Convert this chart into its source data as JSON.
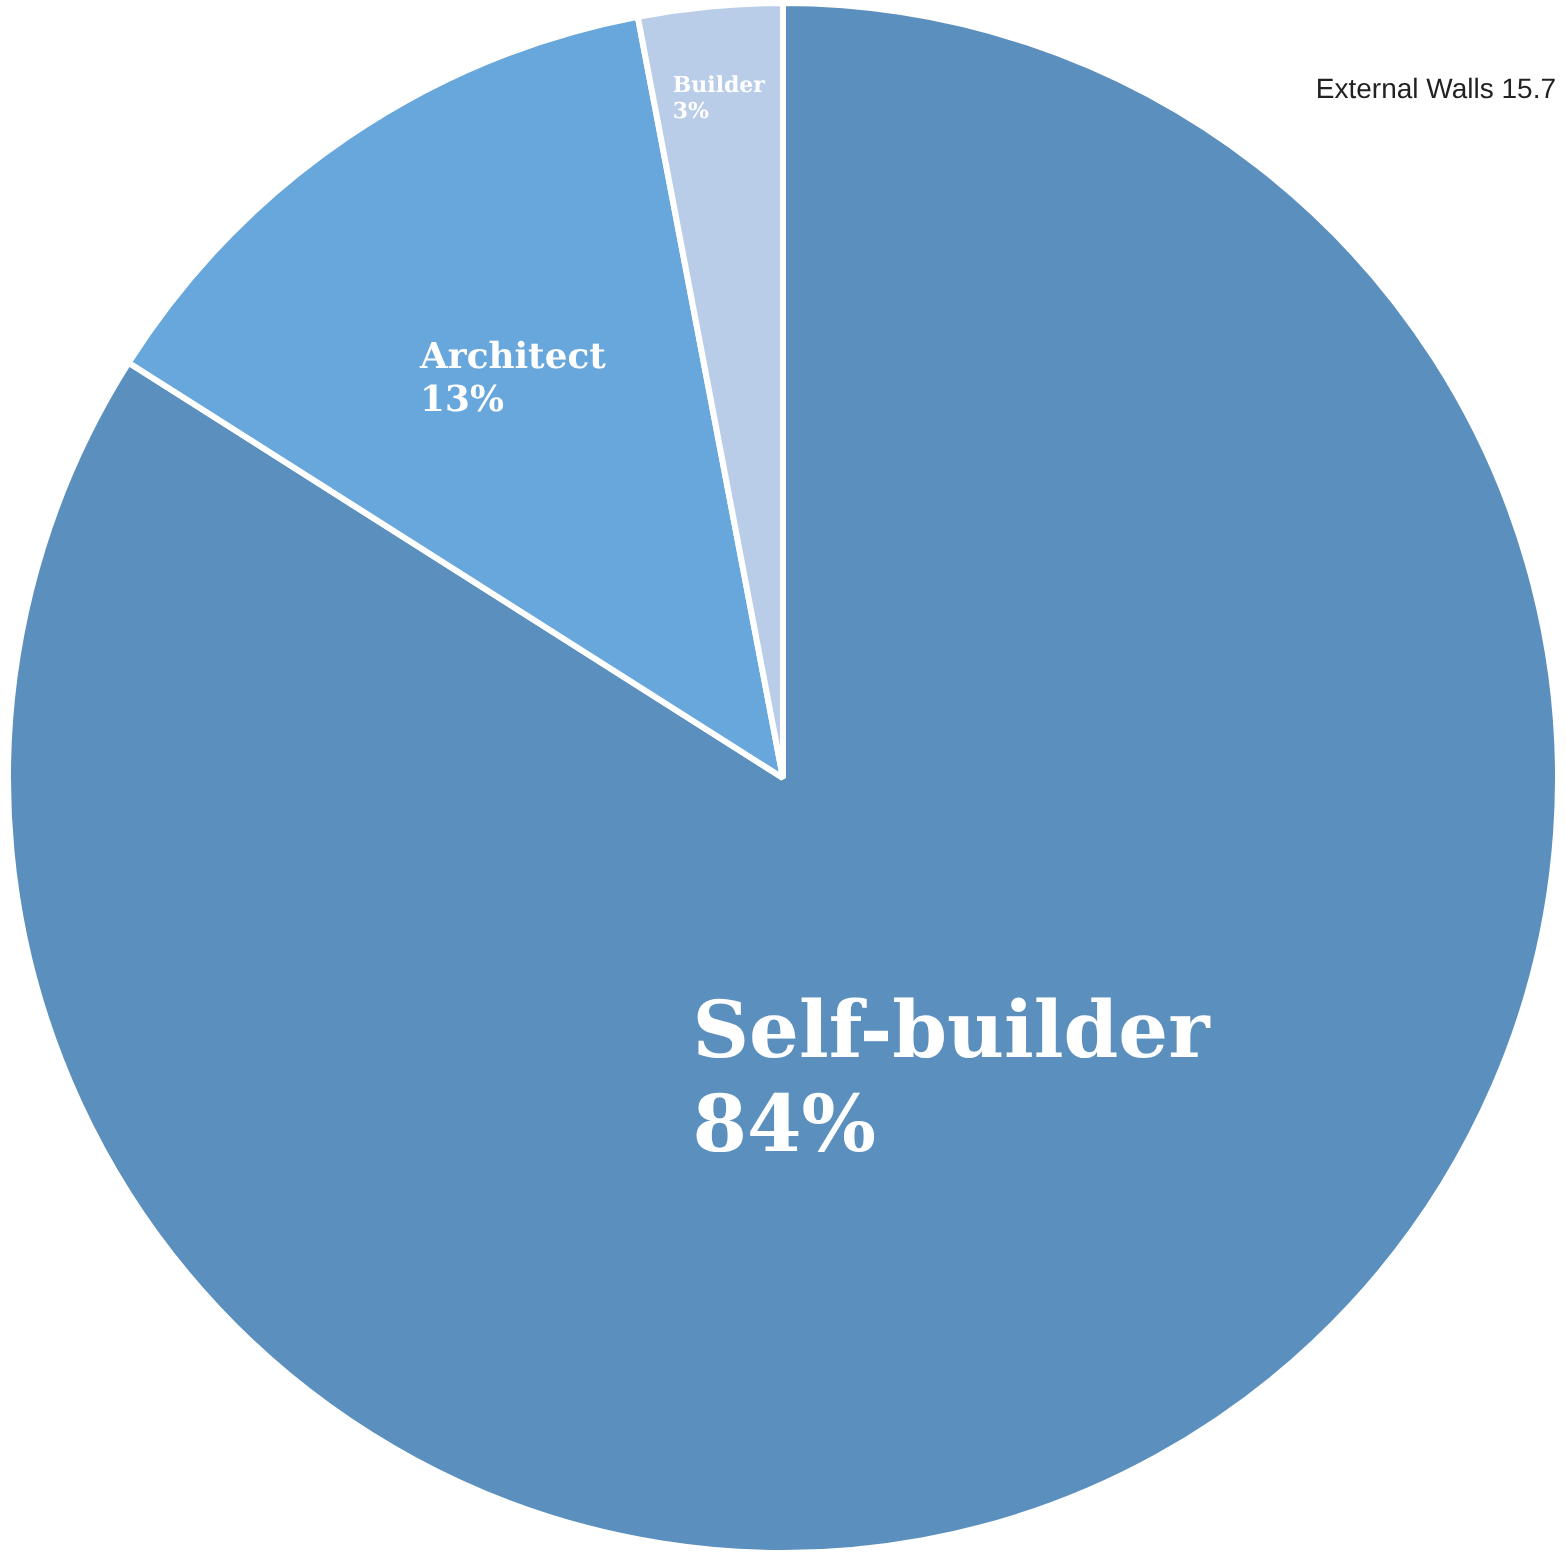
{
  "chart_data": {
    "type": "pie",
    "categories": [
      "Self-builder",
      "Architect",
      "Builder"
    ],
    "values": [
      84,
      13,
      3
    ],
    "colors": [
      "#5a8fbe",
      "#68a7dc",
      "#b9cde8"
    ],
    "value_labels": [
      "84%",
      "13%",
      "3%"
    ],
    "legend": false,
    "annotations": [
      "External Walls 15.7"
    ]
  }
}
